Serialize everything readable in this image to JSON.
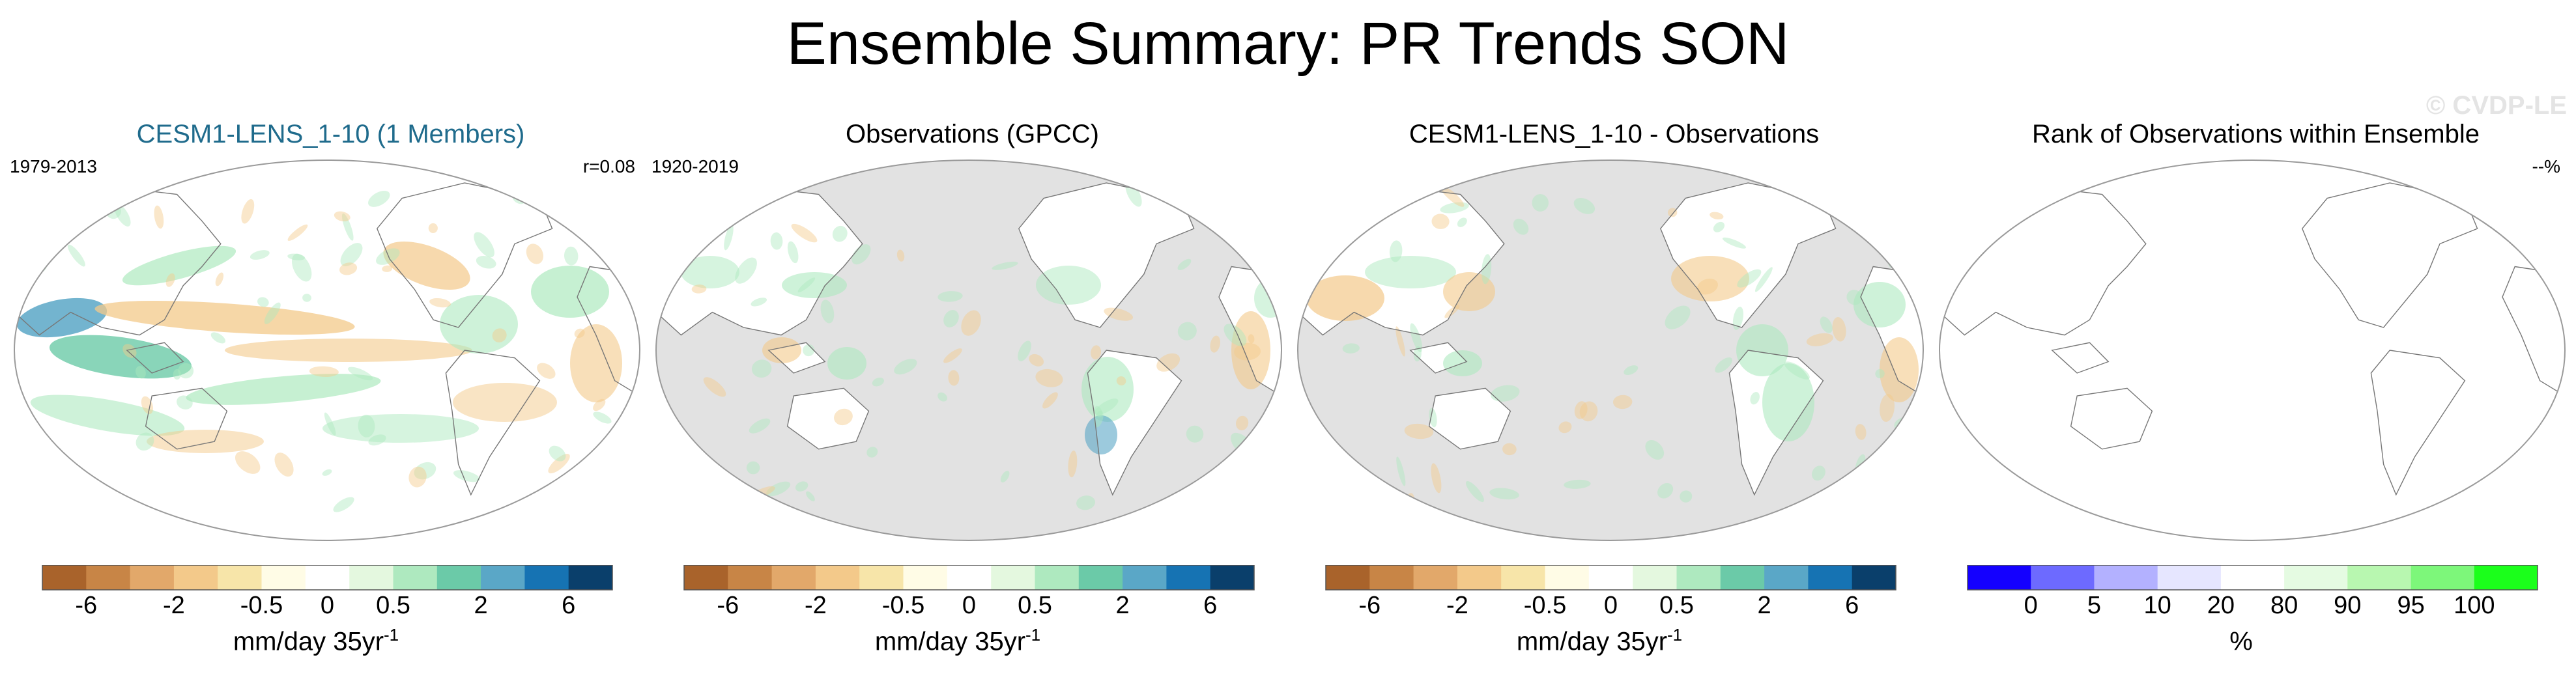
{
  "title": "Ensemble Summary: PR Trends SON",
  "watermark": "© CVDP-LE",
  "colorscales": {
    "trend": [
      "#a9632b",
      "#c88546",
      "#e2a86a",
      "#f3c98a",
      "#f7e5a9",
      "#fffce6",
      "#ffffff",
      "#e4f8df",
      "#aee9bf",
      "#6bcaa8",
      "#5aa7c7",
      "#1673b3",
      "#0a3f6b"
    ],
    "rank": [
      "#1400ff",
      "#6d6aff",
      "#b3b1ff",
      "#e6e6ff",
      "#ffffff",
      "#e5fbe2",
      "#b8f7b0",
      "#7df77a",
      "#1bff1b"
    ]
  },
  "panels": [
    {
      "title": "CESM1-LENS_1-10 (1 Members)",
      "left_label": "1979-2013",
      "right_label": "r=0.08",
      "units_text": "mm/day 35yr",
      "units_sup": "-1",
      "ticks": [
        "-6",
        "-2",
        "-0.5",
        "0",
        "0.5",
        "2",
        "6"
      ]
    },
    {
      "title": "Observations (GPCC)",
      "left_label": "1920-2019",
      "right_label": "",
      "units_text": "mm/day 35yr",
      "units_sup": "-1",
      "ticks": [
        "-6",
        "-2",
        "-0.5",
        "0",
        "0.5",
        "2",
        "6"
      ]
    },
    {
      "title": "CESM1-LENS_1-10 - Observations",
      "left_label": "",
      "right_label": "",
      "units_text": "mm/day 35yr",
      "units_sup": "-1",
      "ticks": [
        "-6",
        "-2",
        "-0.5",
        "0",
        "0.5",
        "2",
        "6"
      ]
    },
    {
      "title": "Rank of Observations within Ensemble",
      "left_label": "",
      "right_label": "--%",
      "units_text": "%",
      "units_sup": "",
      "ticks": [
        "0",
        "5",
        "10",
        "20",
        "80",
        "90",
        "95",
        "100"
      ]
    }
  ],
  "chart_data": [
    {
      "type": "heatmap",
      "title": "CESM1-LENS_1-10 (1 Members)",
      "period": "1979-2013",
      "pattern_correlation": 0.08,
      "colorbar_levels": [
        -6,
        -2,
        -0.5,
        0,
        0.5,
        2,
        6
      ],
      "units": "mm/day 35yr-1"
    },
    {
      "type": "heatmap",
      "title": "Observations (GPCC)",
      "period": "1920-2019",
      "colorbar_levels": [
        -6,
        -2,
        -0.5,
        0,
        0.5,
        2,
        6
      ],
      "units": "mm/day 35yr-1"
    },
    {
      "type": "heatmap",
      "title": "CESM1-LENS_1-10 - Observations",
      "colorbar_levels": [
        -6,
        -2,
        -0.5,
        0,
        0.5,
        2,
        6
      ],
      "units": "mm/day 35yr-1"
    },
    {
      "type": "heatmap",
      "title": "Rank of Observations within Ensemble",
      "summary": "--%",
      "colorbar_levels": [
        0,
        5,
        10,
        20,
        80,
        90,
        95,
        100
      ],
      "units": "%"
    }
  ]
}
